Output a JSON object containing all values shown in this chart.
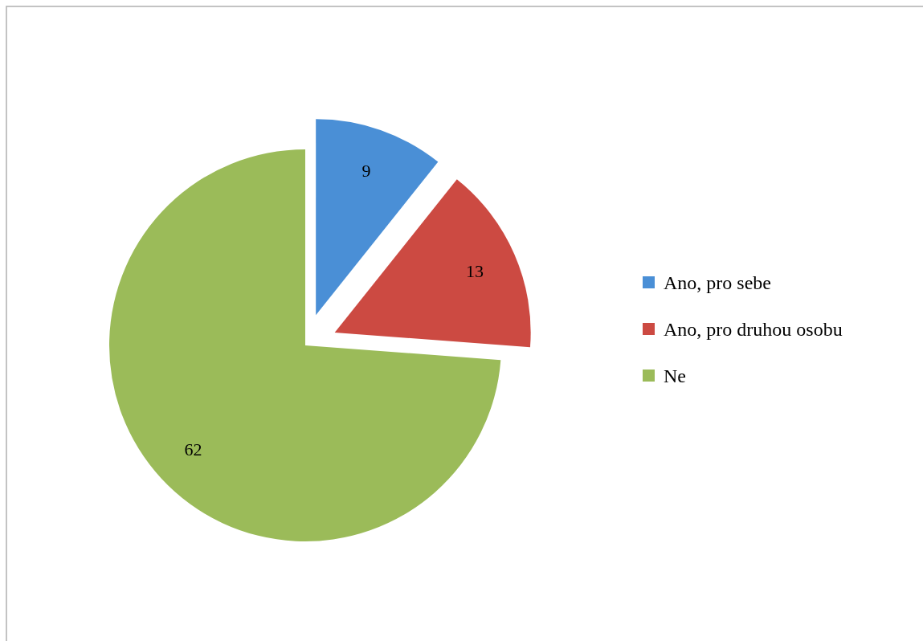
{
  "chart_data": {
    "type": "pie",
    "categories": [
      "Ano, pro sebe",
      "Ano, pro druhou osobu",
      "Ne"
    ],
    "values": [
      9,
      13,
      62
    ],
    "colors": [
      "#4a8fd6",
      "#cc4a42",
      "#9bbb59"
    ],
    "data_labels": true,
    "legend": "right"
  }
}
